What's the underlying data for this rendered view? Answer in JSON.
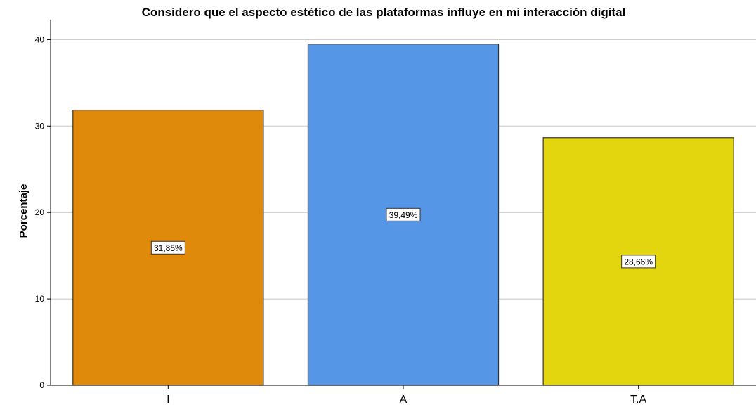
{
  "chart_data": {
    "type": "bar",
    "title": "Considero que el aspecto estético de las plataformas influye en mi interacción digital",
    "xlabel": "",
    "ylabel": "Porcentaje",
    "categories": [
      "I",
      "A",
      "T.A"
    ],
    "values": [
      31.85,
      39.49,
      28.66
    ],
    "data_labels": [
      "31,85%",
      "39,49%",
      "28,66%"
    ],
    "colors": [
      "#e08a0b",
      "#5596e6",
      "#e3d60f"
    ],
    "ylim": [
      0,
      42
    ],
    "yticks": [
      0,
      10,
      20,
      30,
      40
    ],
    "ytick_labels": [
      "0",
      "10",
      "20",
      "30",
      "40"
    ],
    "grid": true,
    "legend": "none"
  }
}
